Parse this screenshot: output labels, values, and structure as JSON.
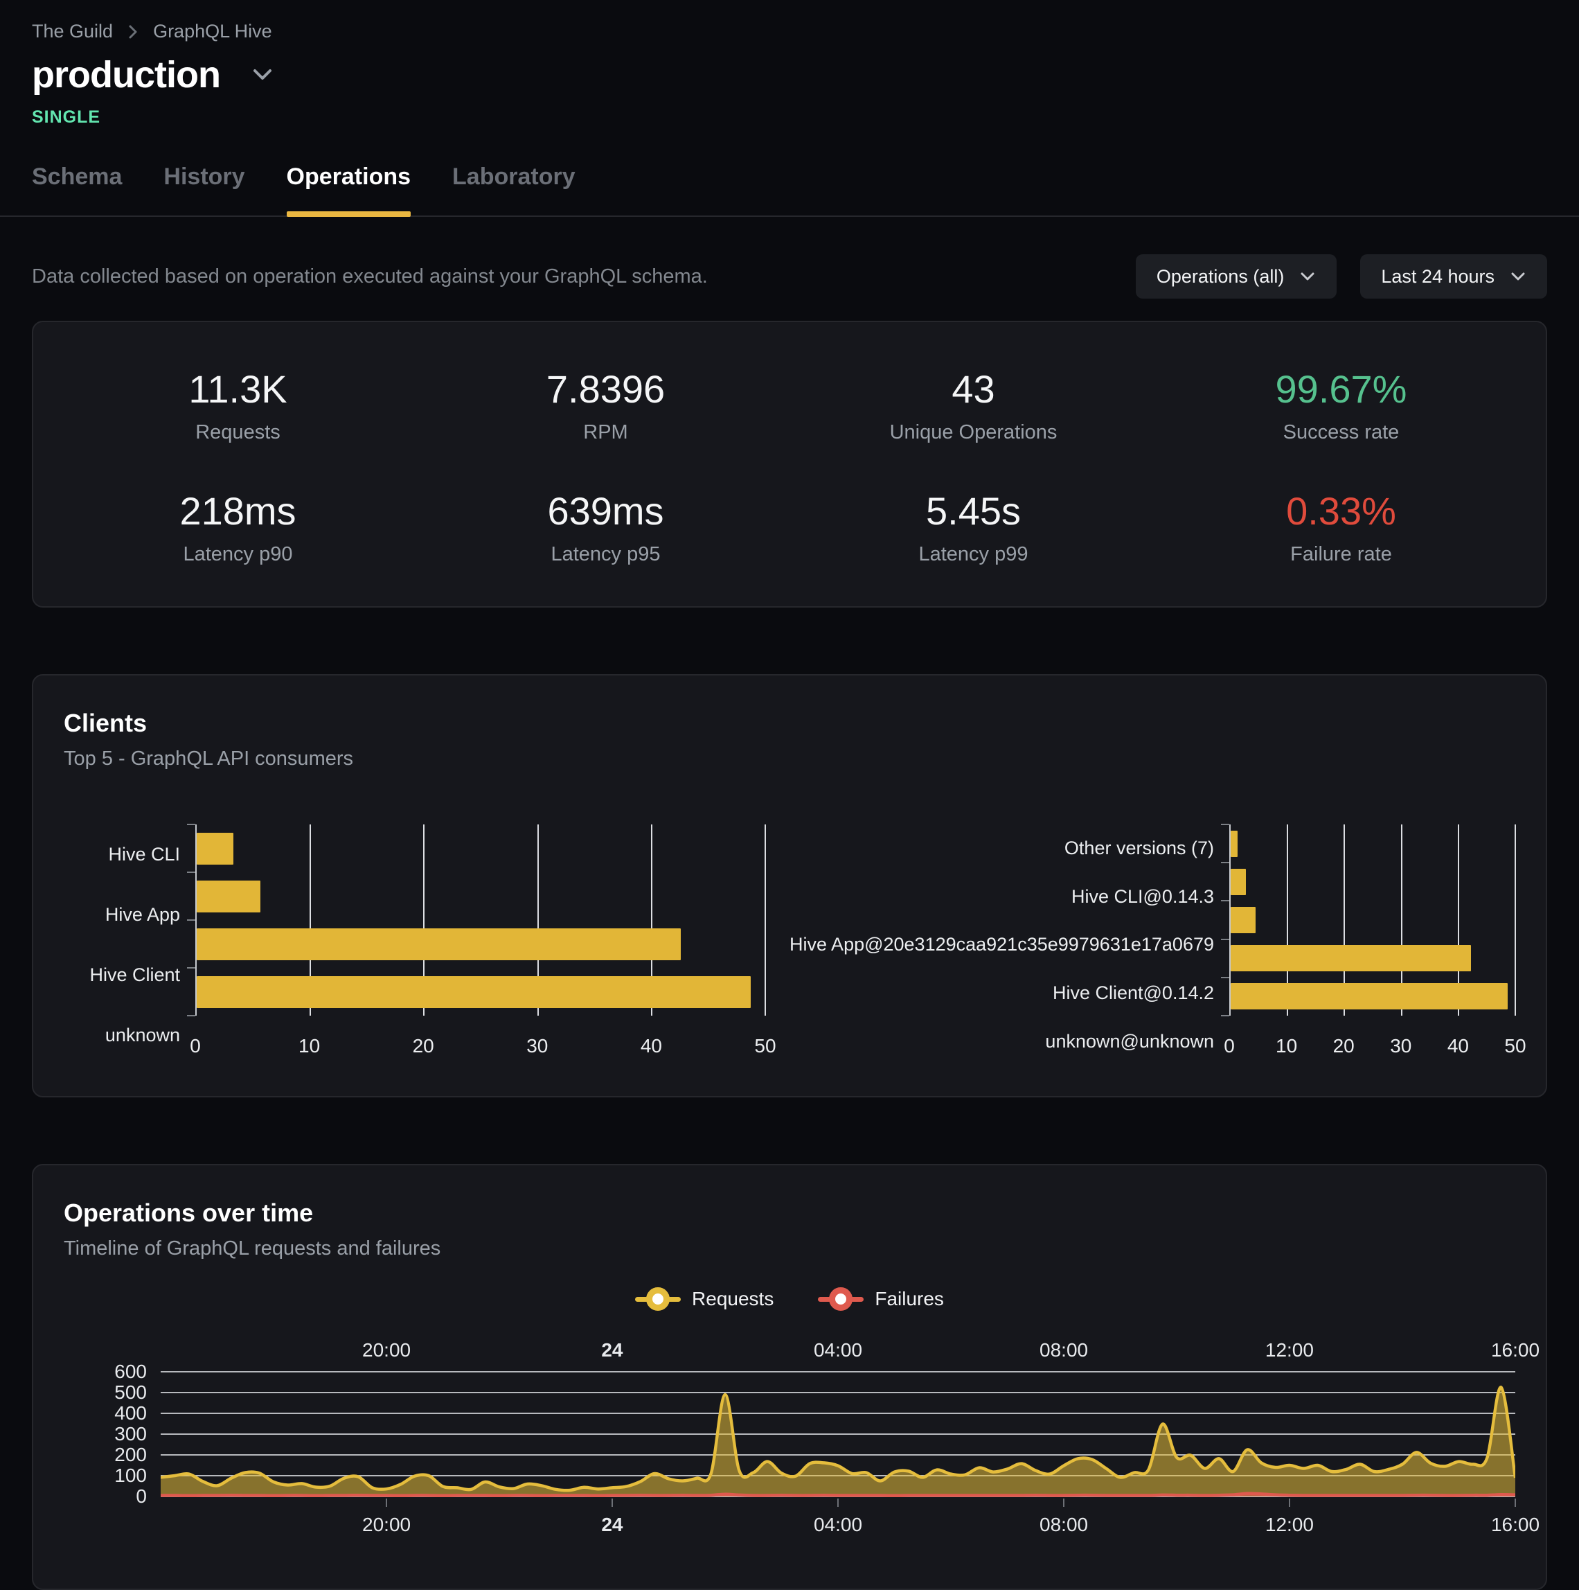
{
  "colors": {
    "accent_yellow": "#eab741",
    "bar_yellow": "#e2b637",
    "requests_line": "#e5bd3d",
    "failures_red": "#df5a4e",
    "success_green": "#56c18e",
    "failure_text_red": "#e04b3c",
    "badge_mint": "#63e6b0"
  },
  "header": {
    "breadcrumb": {
      "org": "The Guild",
      "project": "GraphQL Hive"
    },
    "title": "production",
    "badge": "SINGLE",
    "tabs": [
      {
        "label": "Schema",
        "active": false
      },
      {
        "label": "History",
        "active": false
      },
      {
        "label": "Operations",
        "active": true
      },
      {
        "label": "Laboratory",
        "active": false
      }
    ]
  },
  "toolbar": {
    "description": "Data collected based on operation executed against your GraphQL schema.",
    "filters": [
      {
        "label": "Operations (all)"
      },
      {
        "label": "Last 24 hours"
      }
    ]
  },
  "stats": [
    {
      "value": "11.3K",
      "label": "Requests",
      "color": "white"
    },
    {
      "value": "7.8396",
      "label": "RPM",
      "color": "white"
    },
    {
      "value": "43",
      "label": "Unique Operations",
      "color": "white"
    },
    {
      "value": "99.67%",
      "label": "Success rate",
      "color": "green"
    },
    {
      "value": "218ms",
      "label": "Latency p90",
      "color": "white"
    },
    {
      "value": "639ms",
      "label": "Latency p95",
      "color": "white"
    },
    {
      "value": "5.45s",
      "label": "Latency p99",
      "color": "white"
    },
    {
      "value": "0.33%",
      "label": "Failure rate",
      "color": "red"
    }
  ],
  "clients_card": {
    "title": "Clients",
    "subtitle": "Top 5 - GraphQL API consumers"
  },
  "timeline_card": {
    "title": "Operations over time",
    "subtitle": "Timeline of GraphQL requests and failures",
    "legend": [
      {
        "label": "Requests",
        "color": "#e5bd3d"
      },
      {
        "label": "Failures",
        "color": "#df5a4e"
      }
    ]
  },
  "chart_data": [
    {
      "type": "bar",
      "orientation": "horizontal",
      "title": "Clients by name",
      "categories": [
        "Hive CLI",
        "Hive App",
        "Hive Client",
        "unknown"
      ],
      "values": [
        3.2,
        5.6,
        42.6,
        48.7
      ],
      "xlim": [
        0,
        50
      ],
      "xticks": [
        0,
        10,
        20,
        30,
        40,
        50
      ],
      "bar_color": "#e2b637",
      "grid": "vertical"
    },
    {
      "type": "bar",
      "orientation": "horizontal",
      "title": "Clients by version",
      "categories": [
        "Other versions (7)",
        "Hive CLI@0.14.3",
        "Hive App@20e3129caa921c35e9979631e17a0679",
        "Hive Client@0.14.2",
        "unknown@unknown"
      ],
      "values": [
        1.2,
        2.7,
        4.4,
        42.2,
        48.7
      ],
      "xlim": [
        0,
        50
      ],
      "xticks": [
        0,
        10,
        20,
        30,
        40,
        50
      ],
      "bar_color": "#e2b637",
      "grid": "vertical"
    },
    {
      "type": "area",
      "title": "Operations over time",
      "interval_minutes": 15,
      "x_axis": {
        "start": "16:00",
        "end": "16:00",
        "span_hours": 24,
        "ticks": [
          {
            "label": "20:00",
            "f": 0.1667
          },
          {
            "label": "24",
            "f": 0.3333,
            "bold": true
          },
          {
            "label": "04:00",
            "f": 0.5
          },
          {
            "label": "08:00",
            "f": 0.6667
          },
          {
            "label": "12:00",
            "f": 0.8333
          },
          {
            "label": "16:00",
            "f": 1
          }
        ],
        "labels_top_and_bottom": true
      },
      "y_axis": {
        "min": 0,
        "max": 600,
        "tick_step": 100,
        "grid": "horizontal"
      },
      "series": [
        {
          "name": "Requests",
          "color": "#e5bd3d",
          "fill_opacity": 0.55,
          "values": [
            92,
            100,
            108,
            72,
            52,
            88,
            115,
            112,
            70,
            55,
            62,
            45,
            50,
            88,
            95,
            42,
            36,
            58,
            98,
            100,
            48,
            42,
            34,
            70,
            46,
            38,
            60,
            52,
            34,
            30,
            44,
            36,
            42,
            48,
            72,
            110,
            85,
            75,
            88,
            110,
            490,
            125,
            115,
            168,
            112,
            98,
            158,
            162,
            148,
            110,
            115,
            75,
            118,
            122,
            92,
            128,
            108,
            104,
            138,
            118,
            132,
            158,
            125,
            108,
            148,
            182,
            178,
            135,
            92,
            115,
            128,
            348,
            188,
            198,
            135,
            182,
            120,
            225,
            162,
            140,
            150,
            135,
            150,
            120,
            130,
            155,
            120,
            130,
            155,
            212,
            160,
            145,
            168,
            155,
            185,
            525,
            90
          ]
        },
        {
          "name": "Failures",
          "color": "#df5a4e",
          "fill_opacity": 0.6,
          "values": [
            5,
            5,
            4,
            5,
            5,
            6,
            5,
            5,
            4,
            5,
            5,
            4,
            5,
            5,
            6,
            5,
            5,
            4,
            5,
            5,
            4,
            5,
            5,
            5,
            4,
            5,
            5,
            4,
            5,
            5,
            5,
            4,
            5,
            5,
            6,
            5,
            5,
            6,
            5,
            6,
            11,
            7,
            5,
            5,
            6,
            5,
            5,
            6,
            5,
            5,
            5,
            5,
            4,
            5,
            5,
            5,
            5,
            5,
            5,
            5,
            5,
            5,
            6,
            5,
            5,
            6,
            6,
            5,
            5,
            5,
            5,
            7,
            6,
            6,
            5,
            6,
            8,
            14,
            12,
            8,
            6,
            5,
            5,
            5,
            5,
            5,
            5,
            5,
            5,
            6,
            6,
            5,
            5,
            6,
            6,
            9,
            8
          ]
        }
      ],
      "legend_position": "top-center"
    }
  ]
}
